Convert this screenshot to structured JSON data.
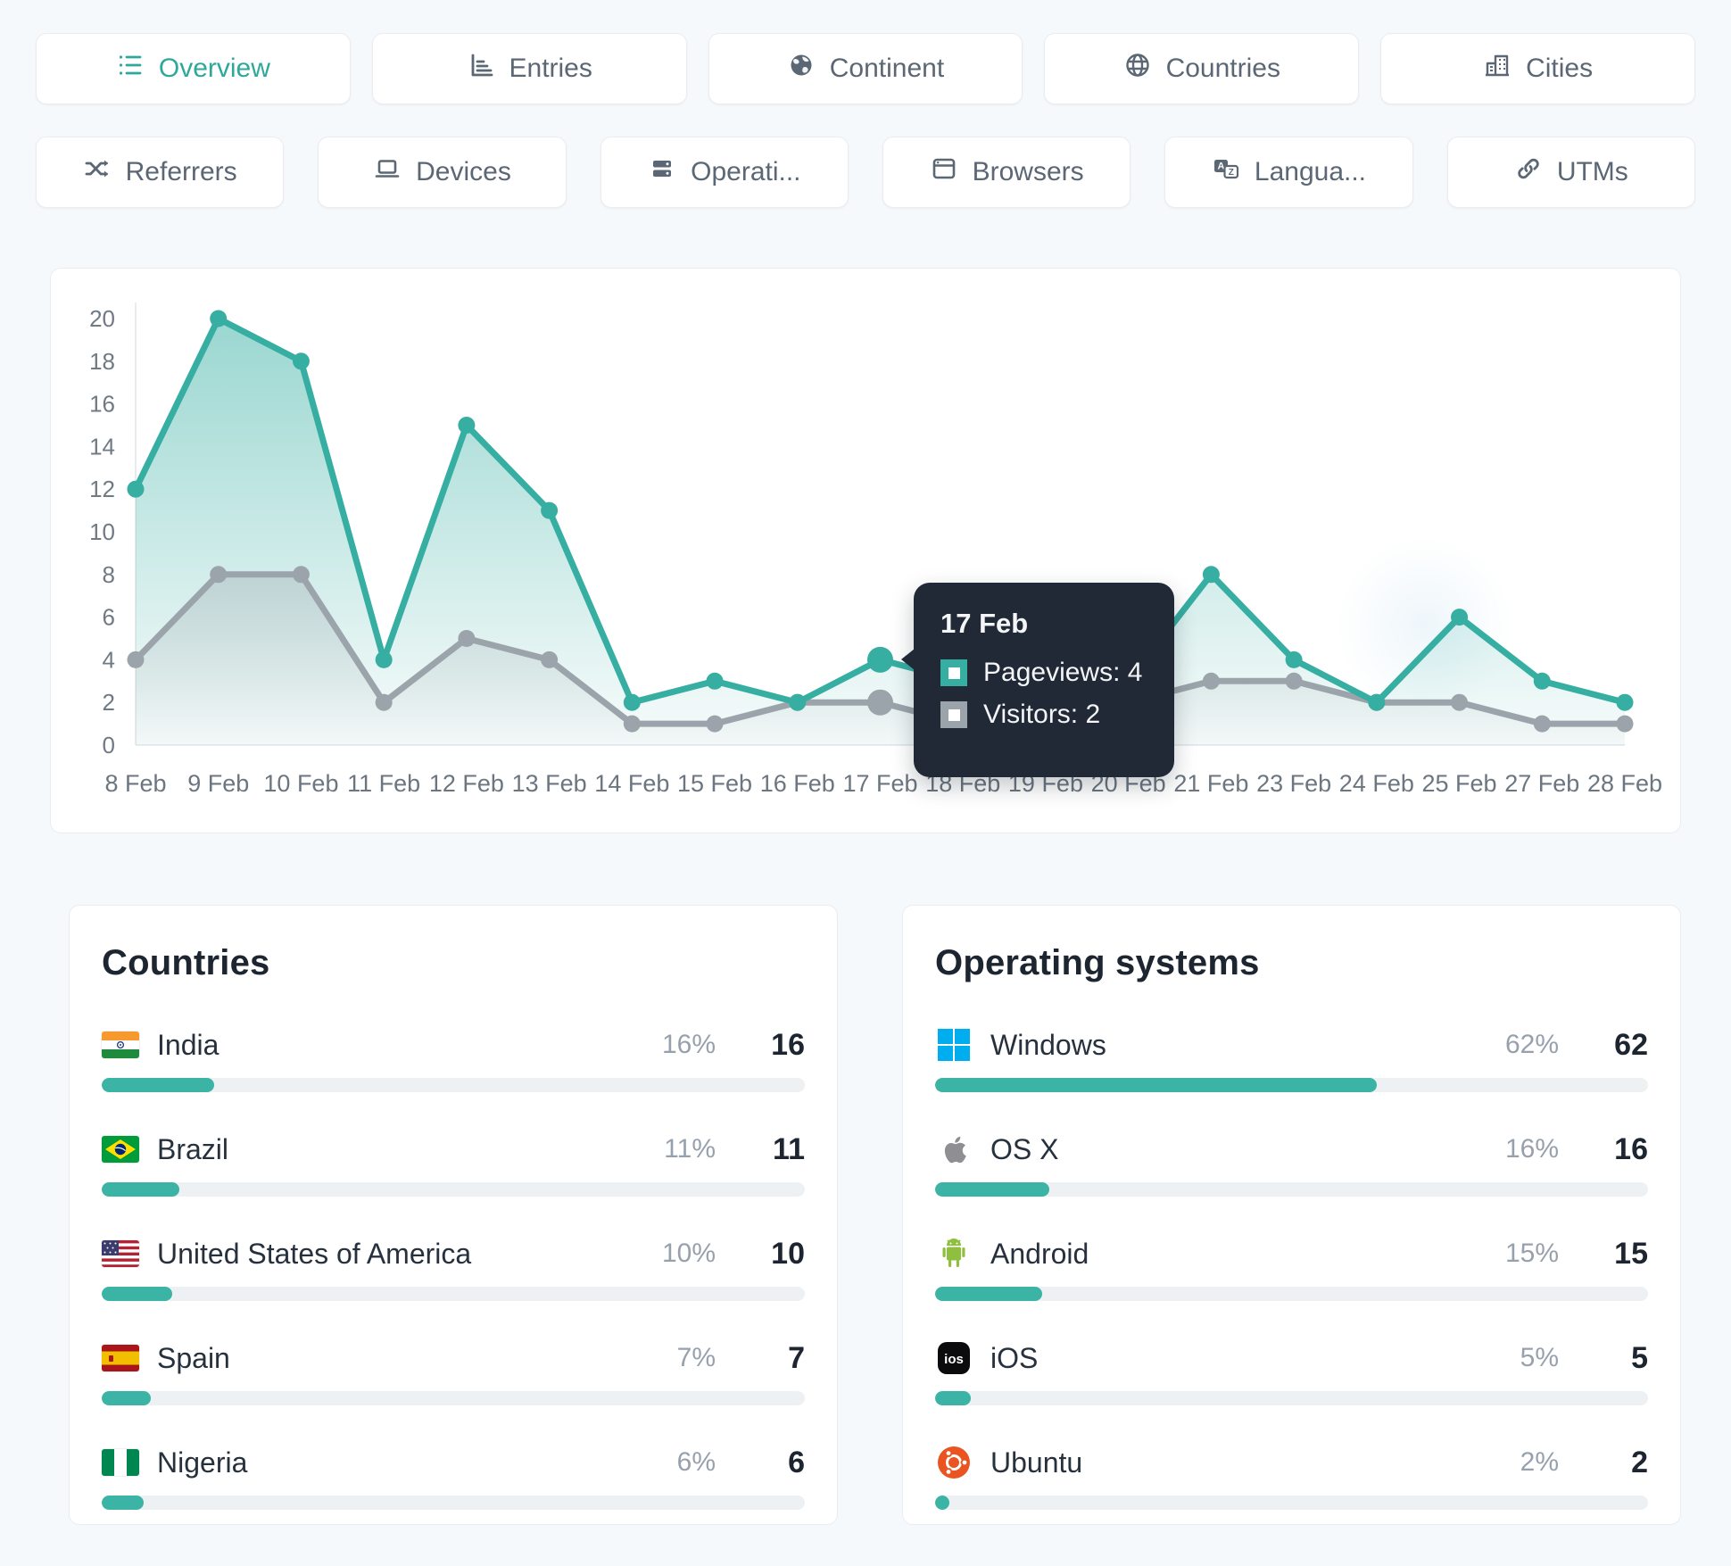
{
  "colors": {
    "accent_teal": "#36aea2",
    "bar_teal": "#3bb3a5",
    "visitors_gray": "#9ba4ab",
    "tooltip_bg": "#212836",
    "page_bg": "#f6f9fb",
    "card_border": "#e9edf2"
  },
  "tabs_row1": [
    {
      "label": "Overview",
      "icon": "overview-list-icon",
      "active": true
    },
    {
      "label": "Entries",
      "icon": "entries-chart-icon",
      "active": false
    },
    {
      "label": "Continent",
      "icon": "continent-globe-icon",
      "active": false
    },
    {
      "label": "Countries",
      "icon": "countries-globe-icon",
      "active": false
    },
    {
      "label": "Cities",
      "icon": "cities-buildings-icon",
      "active": false
    }
  ],
  "tabs_row2": [
    {
      "label": "Referrers",
      "icon": "shuffle-icon"
    },
    {
      "label": "Devices",
      "icon": "laptop-icon"
    },
    {
      "label": "Operati...",
      "icon": "server-icon"
    },
    {
      "label": "Browsers",
      "icon": "browser-window-icon"
    },
    {
      "label": "Langua...",
      "icon": "translate-icon"
    },
    {
      "label": "UTMs",
      "icon": "link-icon"
    }
  ],
  "chart_data": {
    "type": "line",
    "categories": [
      "8 Feb",
      "9 Feb",
      "10 Feb",
      "11 Feb",
      "12 Feb",
      "13 Feb",
      "14 Feb",
      "15 Feb",
      "16 Feb",
      "17 Feb",
      "18 Feb",
      "19 Feb",
      "20 Feb",
      "21 Feb",
      "23 Feb",
      "24 Feb",
      "25 Feb",
      "27 Feb",
      "28 Feb"
    ],
    "series": [
      {
        "name": "Pageviews",
        "color": "#36aea2",
        "values": [
          12,
          20,
          18,
          4,
          15,
          11,
          2,
          3,
          2,
          4,
          3,
          2,
          3,
          8,
          4,
          2,
          6,
          3,
          2
        ]
      },
      {
        "name": "Visitors",
        "color": "#9ba4ab",
        "values": [
          4,
          8,
          8,
          2,
          5,
          4,
          1,
          1,
          2,
          2,
          1,
          1,
          2,
          3,
          3,
          2,
          2,
          1,
          1
        ]
      }
    ],
    "ylim": [
      0,
      20
    ],
    "yticks": [
      0,
      2,
      4,
      6,
      8,
      10,
      12,
      14,
      16,
      18,
      20
    ],
    "xlabel": "",
    "ylabel": "",
    "grid": false,
    "legend": "none (hover tooltip only)",
    "hovered_category": "17 Feb",
    "note": "values for 18-20 Feb are obscured by the hover tooltip and estimated"
  },
  "tooltip": {
    "title": "17 Feb",
    "rows": [
      {
        "series": "Pageviews",
        "text": "Pageviews: 4",
        "marker_color": "#36aea2"
      },
      {
        "series": "Visitors",
        "text": "Visitors: 2",
        "marker_color": "#9ba4ab"
      }
    ]
  },
  "panels": {
    "countries": {
      "title": "Countries",
      "rows": [
        {
          "label": "India",
          "flag": "india-flag",
          "percent": "16%",
          "count": "16",
          "pct": 16
        },
        {
          "label": "Brazil",
          "flag": "brazil-flag",
          "percent": "11%",
          "count": "11",
          "pct": 11
        },
        {
          "label": "United States of America",
          "flag": "usa-flag",
          "percent": "10%",
          "count": "10",
          "pct": 10
        },
        {
          "label": "Spain",
          "flag": "spain-flag",
          "percent": "7%",
          "count": "7",
          "pct": 7
        },
        {
          "label": "Nigeria",
          "flag": "nigeria-flag",
          "percent": "6%",
          "count": "6",
          "pct": 6
        }
      ]
    },
    "operating_systems": {
      "title": "Operating systems",
      "rows": [
        {
          "label": "Windows",
          "icon": "windows-logo",
          "percent": "62%",
          "count": "62",
          "pct": 62
        },
        {
          "label": "OS X",
          "icon": "apple-logo",
          "percent": "16%",
          "count": "16",
          "pct": 16
        },
        {
          "label": "Android",
          "icon": "android-logo",
          "percent": "15%",
          "count": "15",
          "pct": 15
        },
        {
          "label": "iOS",
          "icon": "ios-logo",
          "percent": "5%",
          "count": "5",
          "pct": 5
        },
        {
          "label": "Ubuntu",
          "icon": "ubuntu-logo",
          "percent": "2%",
          "count": "2",
          "pct": 2
        }
      ]
    }
  }
}
